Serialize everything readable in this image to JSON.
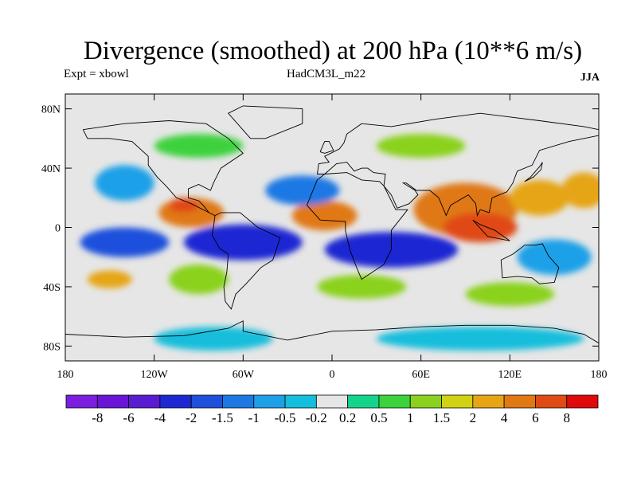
{
  "title": "Divergence (smoothed) at 200 hPa (10**6 m/s)",
  "expt_label": "Expt = xbowl",
  "model_label": "HadCM3L_m22",
  "season_label": "JJA",
  "latitude_ticks": [
    "80N",
    "40N",
    "0",
    "40S",
    "80S"
  ],
  "latitude_values": [
    80,
    40,
    0,
    -40,
    -80
  ],
  "longitude_ticks": [
    "180",
    "120W",
    "60W",
    "0",
    "60E",
    "120E",
    "180"
  ],
  "longitude_values": [
    -180,
    -120,
    -60,
    0,
    60,
    120,
    180
  ],
  "lat_range": [
    -90,
    90
  ],
  "lon_range": [
    -180,
    180
  ],
  "colorbar": {
    "colors": [
      "#7b1ee0",
      "#6a14d6",
      "#5a1cd0",
      "#1e28d2",
      "#1e50dc",
      "#1e78e4",
      "#1ea0e8",
      "#14bedc",
      "#e6e6e6",
      "#14d48c",
      "#3cd23c",
      "#8ad21e",
      "#d2d214",
      "#e6a514",
      "#e07814",
      "#e04a14",
      "#e00a0a"
    ],
    "labels": [
      "-8",
      "-6",
      "-4",
      "-2",
      "-1.5",
      "-1",
      "-0.5",
      "-0.2",
      "0.2",
      "0.5",
      "1",
      "1.5",
      "2",
      "4",
      "6",
      "8"
    ]
  },
  "map_data": {
    "background_color": "#e6e6e6",
    "regions": [
      {
        "lon": -95,
        "lat": 10,
        "value": 4,
        "rlon": 22,
        "rlat": 10
      },
      {
        "lon": -100,
        "lat": 15,
        "value": 6,
        "rlon": 10,
        "rlat": 5
      },
      {
        "lon": -5,
        "lat": 8,
        "value": 4,
        "rlon": 22,
        "rlat": 10
      },
      {
        "lon": 90,
        "lat": 12,
        "value": 4,
        "rlon": 35,
        "rlat": 18
      },
      {
        "lon": 100,
        "lat": 0,
        "value": 6,
        "rlon": 25,
        "rlat": 10
      },
      {
        "lon": 140,
        "lat": 20,
        "value": 2,
        "rlon": 20,
        "rlat": 12
      },
      {
        "lon": 170,
        "lat": 25,
        "value": 2,
        "rlon": 15,
        "rlat": 12
      },
      {
        "lon": -60,
        "lat": -10,
        "value": -4,
        "rlon": 40,
        "rlat": 12
      },
      {
        "lon": 40,
        "lat": -15,
        "value": -4,
        "rlon": 45,
        "rlat": 12
      },
      {
        "lon": -140,
        "lat": -10,
        "value": -2,
        "rlon": 30,
        "rlat": 10
      },
      {
        "lon": -140,
        "lat": 30,
        "value": -1,
        "rlon": 20,
        "rlat": 12
      },
      {
        "lon": -20,
        "lat": 25,
        "value": -1.5,
        "rlon": 25,
        "rlat": 10
      },
      {
        "lon": 150,
        "lat": -20,
        "value": -1,
        "rlon": 25,
        "rlat": 12
      },
      {
        "lon": -150,
        "lat": -35,
        "value": 2,
        "rlon": 15,
        "rlat": 6
      },
      {
        "lon": -90,
        "lat": -35,
        "value": 1,
        "rlon": 20,
        "rlat": 10
      },
      {
        "lon": 20,
        "lat": -40,
        "value": 1,
        "rlon": 30,
        "rlat": 8
      },
      {
        "lon": 120,
        "lat": -45,
        "value": 1,
        "rlon": 30,
        "rlat": 8
      },
      {
        "lon": 100,
        "lat": -75,
        "value": -0.5,
        "rlon": 70,
        "rlat": 8
      },
      {
        "lon": -80,
        "lat": -75,
        "value": -0.5,
        "rlon": 40,
        "rlat": 8
      },
      {
        "lon": -90,
        "lat": 55,
        "value": 0.5,
        "rlon": 30,
        "rlat": 8
      },
      {
        "lon": 60,
        "lat": 55,
        "value": 1,
        "rlon": 30,
        "rlat": 8
      }
    ]
  }
}
